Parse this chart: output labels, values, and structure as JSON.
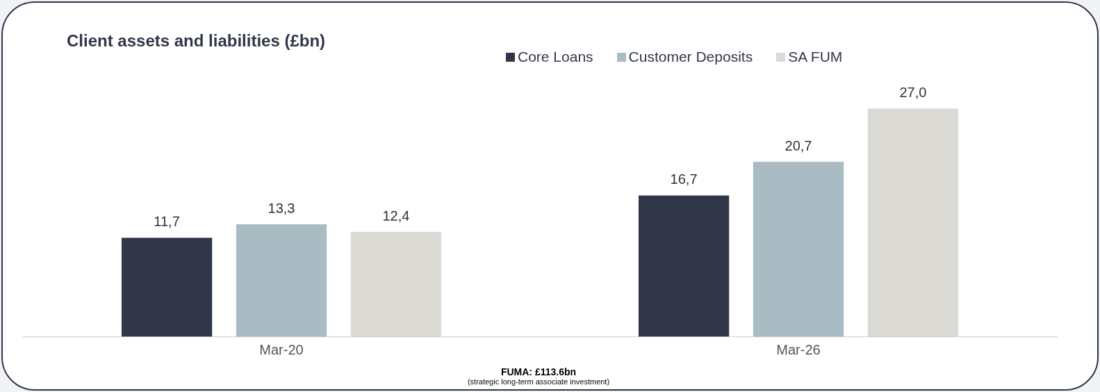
{
  "chart_data": {
    "type": "bar",
    "title": "Client assets and liabilities (£bn)",
    "categories": [
      "Mar-20",
      "Mar-26"
    ],
    "legend": "top right",
    "grid": false,
    "series": [
      {
        "name": "Core Loans",
        "color": "#313749",
        "values": [
          11.7,
          16.7
        ],
        "value_labels": [
          "11,7",
          "16,7"
        ]
      },
      {
        "name": "Customer Deposits",
        "color": "#a9bbc3",
        "values": [
          13.3,
          20.7
        ],
        "value_labels": [
          "13,3",
          "20,7"
        ]
      },
      {
        "name": "SA FUM",
        "color": "#dbdad5",
        "values": [
          12.4,
          27.0
        ],
        "value_labels": [
          "12,4",
          "27,0"
        ]
      }
    ],
    "annotations": [
      "FUMA: £113.6bn",
      "(strategic long-term associate investment)"
    ]
  }
}
